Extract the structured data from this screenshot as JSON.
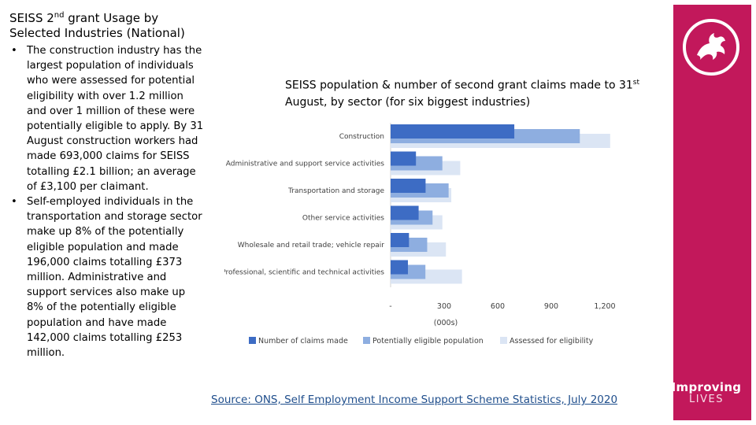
{
  "slide": {
    "title_part1": "SEISS 2",
    "title_sup": "nd",
    "title_part2": " grant Usage by",
    "title_line2": "Selected Industries (National)",
    "bullets": [
      "The construction industry has the largest population of individuals who were assessed for potential eligibility with over 1.2 million and over 1 million of these were potentially eligible to apply. By 31 August construction workers had made 693,000 claims for SEISS totalling £2.1 billion; an average of £3,100 per claimant.",
      "Self-employed individuals in the transportation and storage sector make up 8% of the potentially eligible population and made 196,000 claims totalling £373 million. Administrative and support services also make up 8% of the potentially eligible population and have made 142,000 claims totalling £253 million."
    ],
    "chart_title_part1": "SEISS population & number of second grant claims made to 31",
    "chart_title_sup": "st",
    "chart_title_part2": "August, by sector (for six biggest industries)",
    "source": "Source: ONS, Self Employment Income Support Scheme Statistics, July 2020",
    "brand_line1": "Improving",
    "brand_line2": "LIVES"
  },
  "colors": {
    "claims": "#3d6cc4",
    "eligible": "#8eaee0",
    "assessed": "#dbe5f4",
    "brand": "#c2185b"
  },
  "chart_data": {
    "type": "bar",
    "orientation": "horizontal",
    "title": "SEISS population & number of second grant claims made to 31st August, by sector (for six biggest industries)",
    "categories": [
      "Construction",
      "Administrative and support service activities",
      "Transportation and storage",
      "Other service activities",
      "Wholesale and retail trade; vehicle repair",
      "Professional, scientific and technical activities"
    ],
    "series": [
      {
        "name": "Number of claims made",
        "values": [
          693,
          142,
          196,
          157,
          103,
          97
        ]
      },
      {
        "name": "Potentially eligible population",
        "values": [
          1060,
          290,
          325,
          235,
          205,
          195
        ]
      },
      {
        "name": "Assessed for eligibility",
        "values": [
          1230,
          390,
          340,
          290,
          310,
          400
        ]
      }
    ],
    "xlabel": "(000s)",
    "ylabel": "",
    "xlim": [
      0,
      1200
    ],
    "ticks": [
      "-",
      "300",
      "600",
      "900",
      "1,200"
    ],
    "legend": "bottom"
  }
}
